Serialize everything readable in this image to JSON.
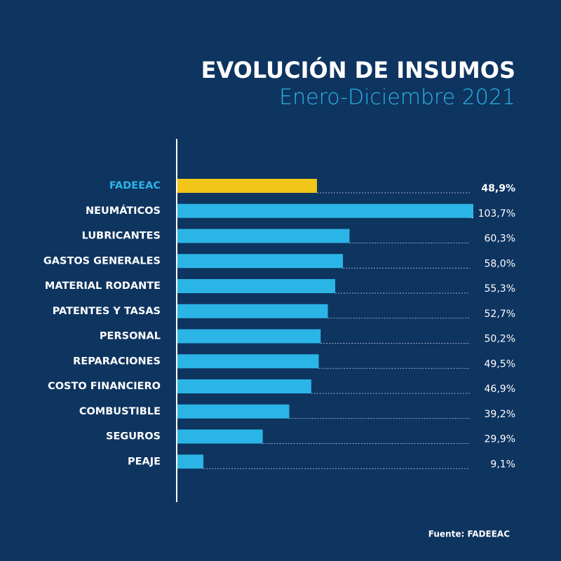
{
  "chart_data": {
    "type": "hbar",
    "title": "EVOLUCIÓN DE INSUMOS",
    "subtitle": "Enero-Diciembre 2021",
    "source": "Fuente: FADEEAC",
    "categories": [
      "FADEEAC",
      "NEUMÁTICOS",
      "LUBRICANTES",
      "GASTOS GENERALES",
      "MATERIAL RODANTE",
      "PATENTES Y TASAS",
      "PERSONAL",
      "REPARACIONES",
      "COSTO FINANCIERO",
      "COMBUSTIBLE",
      "SEGUROS",
      "PEAJE"
    ],
    "values": [
      48.9,
      103.7,
      60.3,
      58.0,
      55.3,
      52.7,
      50.2,
      49.5,
      46.9,
      39.2,
      29.9,
      9.1
    ],
    "value_labels": [
      "48,9%",
      "103,7%",
      "60,3%",
      "58,0%",
      "55,3%",
      "52,7%",
      "50,2%",
      "49,5%",
      "46,9%",
      "39,2%",
      "29,9%",
      "9,1%"
    ],
    "colors": [
      "#f2c618",
      "#2bb5e6",
      "#2bb5e6",
      "#2bb5e6",
      "#2bb5e6",
      "#2bb5e6",
      "#2bb5e6",
      "#2bb5e6",
      "#2bb5e6",
      "#2bb5e6",
      "#2bb5e6",
      "#2bb5e6"
    ],
    "highlight_index": 0
  }
}
